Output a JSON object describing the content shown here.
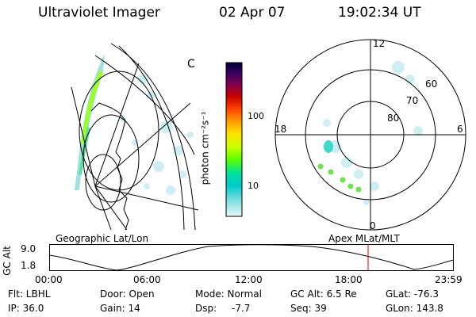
{
  "header": {
    "instrument": "Ultraviolet Imager",
    "date": "02 Apr 07",
    "time": "19:02:34 UT"
  },
  "left_panel": {
    "title": "Geographic Lat/Lon",
    "corner_symbol": "C"
  },
  "colorbar": {
    "label": "photon cm⁻²s⁻¹",
    "ticks": [
      "100",
      "10"
    ],
    "colors": [
      "#000033",
      "#2a0050",
      "#5a0066",
      "#8c0033",
      "#c80000",
      "#ff4000",
      "#ff9a00",
      "#ffe000",
      "#c8ff00",
      "#5aff00",
      "#00e0a0",
      "#00c8c8",
      "#80e0e0",
      "#d0f0f0"
    ]
  },
  "right_panel": {
    "title": "Apex MLat/MLT",
    "mlt_labels": [
      "12",
      "6",
      "0",
      "18"
    ],
    "lat_labels": [
      "60",
      "70",
      "80"
    ]
  },
  "altitude_plot": {
    "ylabel": "GC Alt",
    "yticks": [
      "9.0",
      "1.8"
    ],
    "xticks": [
      "00:00",
      "06:00",
      "12:00",
      "18:00",
      "23:59"
    ],
    "current_marker_color": "#e00000"
  },
  "info": {
    "filter_label": "Flt: LBHL",
    "ip_label": "IP: 36.0",
    "door_label": "Door: Open",
    "gain_label": "Gain: 14",
    "mode_label": "Mode: Normal",
    "dsp_label": "Dsp:",
    "dsp_value": "-7.7",
    "gcalt_label": "GC Alt: 6.5 Re",
    "seq_label": "Seq: 39",
    "glat_label": "GLat: -76.3",
    "glon_label": "GLon: 143.8"
  }
}
